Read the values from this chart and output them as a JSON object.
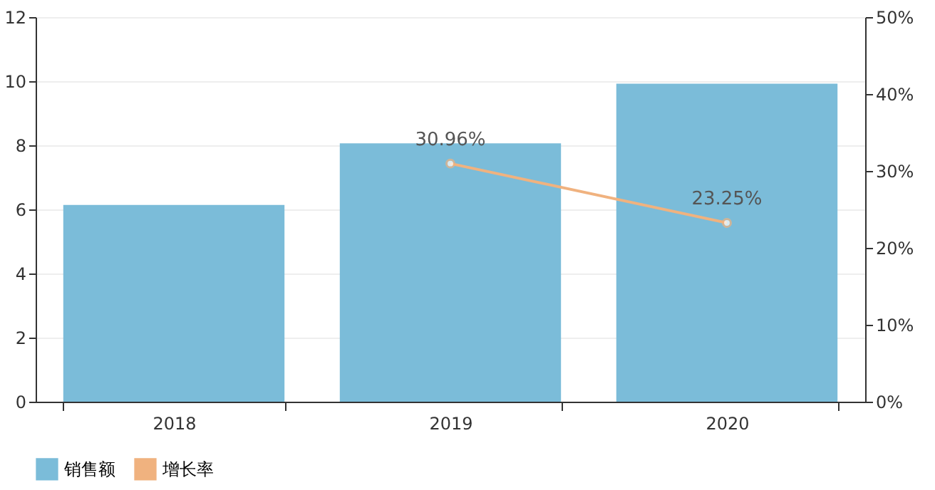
{
  "chart_data": {
    "type": "bar",
    "categories": [
      "2018",
      "2019",
      "2020"
    ],
    "series": [
      {
        "name": "销售额",
        "color": "#7bbcd9",
        "values": [
          6.14,
          8.06,
          9.92
        ]
      },
      {
        "name": "增长率",
        "type": "line",
        "axis": "y2",
        "color": "#f0b27f",
        "marker": "circle",
        "values": [
          null,
          30.96,
          23.25
        ],
        "value_labels": [
          null,
          "30.96%",
          "23.25%"
        ]
      }
    ],
    "ylim": [
      0,
      12
    ],
    "yticks": [
      0,
      2,
      4,
      6,
      8,
      10,
      12
    ],
    "y2lim": [
      0,
      50
    ],
    "y2ticks": [
      {
        "value": 0,
        "label": "0%"
      },
      {
        "value": 10,
        "label": "10%"
      },
      {
        "value": 20,
        "label": "20%"
      },
      {
        "value": 30,
        "label": "30%"
      },
      {
        "value": 40,
        "label": "40%"
      },
      {
        "value": 50,
        "label": "50%"
      }
    ],
    "grid": "y",
    "legend": "bottom"
  }
}
